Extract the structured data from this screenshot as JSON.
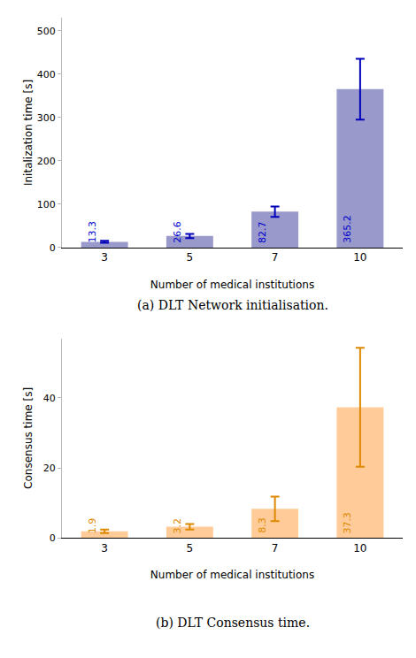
{
  "chart_data": [
    {
      "type": "bar",
      "categories": [
        "3",
        "5",
        "7",
        "10"
      ],
      "values": [
        13.3,
        26.6,
        82.7,
        365.2
      ],
      "errors_lower": [
        2.5,
        5.0,
        12.0,
        70.0
      ],
      "errors_upper": [
        2.5,
        5.0,
        12.0,
        70.0
      ],
      "color": "#9999cc",
      "error_color": "#0000bb",
      "label_color": "#0000cc",
      "data_labels": true,
      "x_label": "Number of medical institutions",
      "y_label": "Initalization time [s]",
      "caption": "(a) DLT Network initialisation.",
      "ylim": [
        0,
        530
      ],
      "yticks": [
        0,
        100,
        200,
        300,
        400,
        500
      ],
      "grid": false
    },
    {
      "type": "bar",
      "categories": [
        "3",
        "5",
        "7",
        "10"
      ],
      "values": [
        1.9,
        3.2,
        8.3,
        37.3
      ],
      "errors_lower": [
        0.5,
        0.8,
        3.5,
        17.0
      ],
      "errors_upper": [
        0.5,
        0.8,
        3.5,
        17.0
      ],
      "color": "#ffcc99",
      "error_color": "#dd8800",
      "label_color": "#dd8800",
      "data_labels": true,
      "x_label": "Number of medical institutions",
      "y_label": "Consensus time [s]",
      "caption": "(b) DLT Consensus time.",
      "ylim": [
        0,
        57
      ],
      "yticks": [
        0,
        20,
        40
      ],
      "grid": false
    }
  ]
}
